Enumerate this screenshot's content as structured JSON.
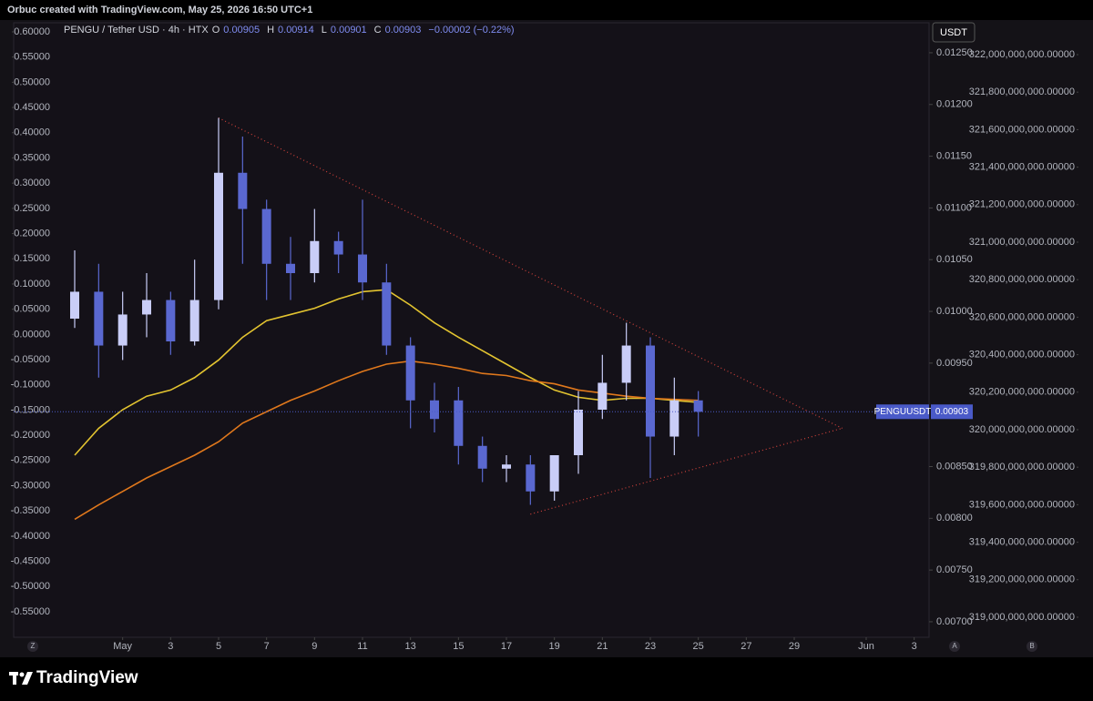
{
  "header": {
    "caption": "Orbuc created with TradingView.com, May 25, 2026 16:50 UTC+1"
  },
  "footer": {
    "brand": "TradingView"
  },
  "ui": {
    "currency": "USDT",
    "left_button": "Z",
    "auto_button": "A",
    "extra_button": "B"
  },
  "chart_data": {
    "type": "candlestick",
    "legend": {
      "symbol": "PENGU / Tether USD · 4h · HTX",
      "open_label": "O",
      "open": 0.00905,
      "high_label": "H",
      "high": 0.00914,
      "low_label": "L",
      "low": 0.00901,
      "close_label": "C",
      "close": 0.00903,
      "change": "−0.00002 (−0.22%)"
    },
    "x": [
      "Apr 29",
      "Apr 30",
      "May 1",
      "May 2",
      "May 3",
      "May 4",
      "May 5",
      "May 6",
      "May 7",
      "May 8",
      "May 9",
      "May 10",
      "May 11",
      "May 12",
      "May 13",
      "May 14",
      "May 15",
      "May 16",
      "May 17",
      "May 18",
      "May 19",
      "May 20",
      "May 21",
      "May 22",
      "May 23",
      "May 24",
      "May 25"
    ],
    "open": [
      0.00993,
      0.01019,
      0.00967,
      0.00997,
      0.01011,
      0.00971,
      0.01011,
      0.01134,
      0.01099,
      0.01046,
      0.01037,
      0.01068,
      0.01055,
      0.01028,
      0.00967,
      0.00914,
      0.00914,
      0.0087,
      0.00848,
      0.00852,
      0.00826,
      0.00861,
      0.00905,
      0.00931,
      0.00967,
      0.00879,
      0.00914
    ],
    "high": [
      0.01059,
      0.01046,
      0.01019,
      0.01037,
      0.01019,
      0.0105,
      0.01187,
      0.01169,
      0.01108,
      0.01072,
      0.01099,
      0.01077,
      0.01108,
      0.01046,
      0.00975,
      0.00931,
      0.00927,
      0.00879,
      0.00861,
      0.00861,
      0.00861,
      0.00923,
      0.00958,
      0.00989,
      0.00975,
      0.00936,
      0.00923
    ],
    "low": [
      0.00984,
      0.00936,
      0.00953,
      0.00975,
      0.00958,
      0.00967,
      0.01002,
      0.01046,
      0.01011,
      0.01011,
      0.01028,
      0.01037,
      0.01011,
      0.00958,
      0.00887,
      0.00883,
      0.00852,
      0.00835,
      0.00835,
      0.00813,
      0.00817,
      0.00843,
      0.00896,
      0.00914,
      0.00839,
      0.00861,
      0.00879
    ],
    "close": [
      0.01019,
      0.00967,
      0.00997,
      0.01011,
      0.00971,
      0.01011,
      0.01134,
      0.01099,
      0.01046,
      0.01037,
      0.01068,
      0.01055,
      0.01028,
      0.00967,
      0.00914,
      0.00896,
      0.0087,
      0.00848,
      0.00852,
      0.00826,
      0.00861,
      0.00905,
      0.00931,
      0.00967,
      0.00879,
      0.00914,
      0.00903
    ],
    "up_color": "#c9cdf7",
    "down_color": "#5a68d0",
    "lines": [
      {
        "color": "#e3c430",
        "values": [
          0.00861,
          0.00887,
          0.00905,
          0.00918,
          0.00924,
          0.00936,
          0.00953,
          0.00975,
          0.00991,
          0.00997,
          0.01003,
          0.01012,
          0.01019,
          0.01021,
          0.01006,
          0.00989,
          0.00975,
          0.00962,
          0.00949,
          0.00936,
          0.00924,
          0.00917,
          0.00914,
          0.00916,
          0.00916,
          0.00914,
          0.00912
        ]
      },
      {
        "color": "#e0781c",
        "values": [
          0.00799,
          0.00813,
          0.00826,
          0.00839,
          0.0085,
          0.00861,
          0.00874,
          0.00892,
          0.00903,
          0.00914,
          0.00923,
          0.00933,
          0.00942,
          0.00949,
          0.00952,
          0.00949,
          0.00945,
          0.0094,
          0.00938,
          0.00933,
          0.0093,
          0.00924,
          0.00921,
          0.00918,
          0.00916,
          0.00915,
          0.00914
        ]
      }
    ],
    "trendlines": [
      {
        "color": "#d0423b",
        "x": [
          "May 5",
          "May 31"
        ],
        "values": [
          0.01187,
          0.00887
        ]
      },
      {
        "color": "#d0423b",
        "x": [
          "May 18",
          "May 31"
        ],
        "values": [
          0.00804,
          0.00887
        ]
      }
    ],
    "last_price": 0.00903,
    "last_price_symbol": "PENGUUSDT",
    "last_price_color": "#4a5ac8",
    "xlim": [
      "Apr 26",
      "Jun 4"
    ],
    "xticks": [
      {
        "value": "May 1",
        "label": "May"
      },
      {
        "value": "May 3",
        "label": "3"
      },
      {
        "value": "May 5",
        "label": "5"
      },
      {
        "value": "May 7",
        "label": "7"
      },
      {
        "value": "May 9",
        "label": "9"
      },
      {
        "value": "May 11",
        "label": "11"
      },
      {
        "value": "May 13",
        "label": "13"
      },
      {
        "value": "May 15",
        "label": "15"
      },
      {
        "value": "May 17",
        "label": "17"
      },
      {
        "value": "May 19",
        "label": "19"
      },
      {
        "value": "May 21",
        "label": "21"
      },
      {
        "value": "May 23",
        "label": "23"
      },
      {
        "value": "May 25",
        "label": "25"
      },
      {
        "value": "May 27",
        "label": "27"
      },
      {
        "value": "May 29",
        "label": "29"
      },
      {
        "value": "Jun 1",
        "label": "Jun"
      },
      {
        "value": "Jun 3",
        "label": "3"
      }
    ],
    "ylim": [
      0.00685,
      0.01279
    ],
    "yticks": [
      {
        "value": 0.0125,
        "label": "0.01250"
      },
      {
        "value": 0.012,
        "label": "0.01200"
      },
      {
        "value": 0.0115,
        "label": "0.01150"
      },
      {
        "value": 0.011,
        "label": "0.01100"
      },
      {
        "value": 0.0105,
        "label": "0.01050"
      },
      {
        "value": 0.01,
        "label": "0.01000"
      },
      {
        "value": 0.0095,
        "label": "0.00950"
      },
      {
        "value": 0.0085,
        "label": "0.00850"
      },
      {
        "value": 0.008,
        "label": "0.00800"
      },
      {
        "value": 0.0075,
        "label": "0.00750"
      },
      {
        "value": 0.007,
        "label": "0.00700"
      }
    ],
    "left_axis": {
      "ylim": [
        -0.6005,
        0.618
      ],
      "yticks": [
        {
          "value": 0.6,
          "label": "0.60000"
        },
        {
          "value": 0.55,
          "label": "0.55000"
        },
        {
          "value": 0.5,
          "label": "0.50000"
        },
        {
          "value": 0.45,
          "label": "0.45000"
        },
        {
          "value": 0.4,
          "label": "0.40000"
        },
        {
          "value": 0.35,
          "label": "0.35000"
        },
        {
          "value": 0.3,
          "label": "0.30000"
        },
        {
          "value": 0.25,
          "label": "0.25000"
        },
        {
          "value": 0.2,
          "label": "0.20000"
        },
        {
          "value": 0.15,
          "label": "0.15000"
        },
        {
          "value": 0.1,
          "label": "0.10000"
        },
        {
          "value": 0.05,
          "label": "0.05000"
        },
        {
          "value": 0,
          "label": "0.00000"
        },
        {
          "value": -0.05,
          "label": "-0.05000"
        },
        {
          "value": -0.1,
          "label": "-0.10000"
        },
        {
          "value": -0.15,
          "label": "-0.15000"
        },
        {
          "value": -0.2,
          "label": "-0.20000"
        },
        {
          "value": -0.25,
          "label": "-0.25000"
        },
        {
          "value": -0.3,
          "label": "-0.30000"
        },
        {
          "value": -0.35,
          "label": "-0.35000"
        },
        {
          "value": -0.4,
          "label": "-0.40000"
        },
        {
          "value": -0.45,
          "label": "-0.45000"
        },
        {
          "value": -0.5,
          "label": "-0.50000"
        },
        {
          "value": -0.55,
          "label": "-0.55000"
        }
      ]
    },
    "right_axis": {
      "ylim": [
        318893000000,
        322170000000
      ],
      "yticks": [
        {
          "value": 322000000000,
          "label": "322,000,000,000.00000"
        },
        {
          "value": 321800000000,
          "label": "321,800,000,000.00000"
        },
        {
          "value": 321600000000,
          "label": "321,600,000,000.00000"
        },
        {
          "value": 321400000000,
          "label": "321,400,000,000.00000"
        },
        {
          "value": 321200000000,
          "label": "321,200,000,000.00000"
        },
        {
          "value": 321000000000,
          "label": "321,000,000,000.00000"
        },
        {
          "value": 320800000000,
          "label": "320,800,000,000.00000"
        },
        {
          "value": 320600000000,
          "label": "320,600,000,000.00000"
        },
        {
          "value": 320400000000,
          "label": "320,400,000,000.00000"
        },
        {
          "value": 320200000000,
          "label": "320,200,000,000.00000"
        },
        {
          "value": 320000000000,
          "label": "320,000,000,000.00000"
        },
        {
          "value": 319800000000,
          "label": "319,800,000,000.00000"
        },
        {
          "value": 319600000000,
          "label": "319,600,000,000.00000"
        },
        {
          "value": 319400000000,
          "label": "319,400,000,000.00000"
        },
        {
          "value": 319200000000,
          "label": "319,200,000,000.00000"
        },
        {
          "value": 319000000000,
          "label": "319,000,000,000.00000"
        }
      ]
    }
  }
}
